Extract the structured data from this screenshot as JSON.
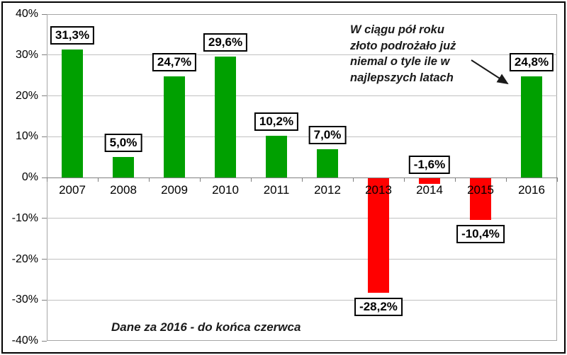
{
  "chart_data": {
    "type": "bar",
    "title": "",
    "xlabel": "",
    "ylabel": "",
    "categories": [
      "2007",
      "2008",
      "2009",
      "2010",
      "2011",
      "2012",
      "2013",
      "2014",
      "2015",
      "2016"
    ],
    "values": [
      31.3,
      5.0,
      24.7,
      29.6,
      10.2,
      7.0,
      -28.2,
      -1.6,
      -10.4,
      24.8
    ],
    "value_labels": [
      "31,3%",
      "5,0%",
      "24,7%",
      "29,6%",
      "10,2%",
      "7,0%",
      "-28,2%",
      "-1,6%",
      "-10,4%",
      "24,8%"
    ],
    "label_positions": [
      "above-bar",
      "above-bar",
      "above-bar",
      "above-bar",
      "above-bar",
      "above-bar",
      "below-bar",
      "above-axis",
      "below-bar",
      "above-bar"
    ],
    "ylim": [
      -40,
      40
    ],
    "ytick_step": 10,
    "ytick_labels": [
      "40%",
      "30%",
      "20%",
      "10%",
      "0%",
      "-10%",
      "-20%",
      "-30%",
      "-40%"
    ],
    "grid": true,
    "legend": "none",
    "colors": {
      "positive_bar": "#00A000",
      "negative_bar": "#FF0000",
      "gridline": "#C0C0C0",
      "plot_border": "#A6A6A6",
      "zero_line": "#808080",
      "tick": "#808080",
      "label_box_bg": "#FFFFFF",
      "label_box_border": "#000000",
      "text": "#000000"
    },
    "annotation": {
      "text": "W ciągu pół roku\nzłoto podrożało już\nniemal o tyle ile w\nnajlepszych latach",
      "arrow_target": "2016"
    },
    "footnote": "Dane za 2016 - do końca czerwca"
  }
}
